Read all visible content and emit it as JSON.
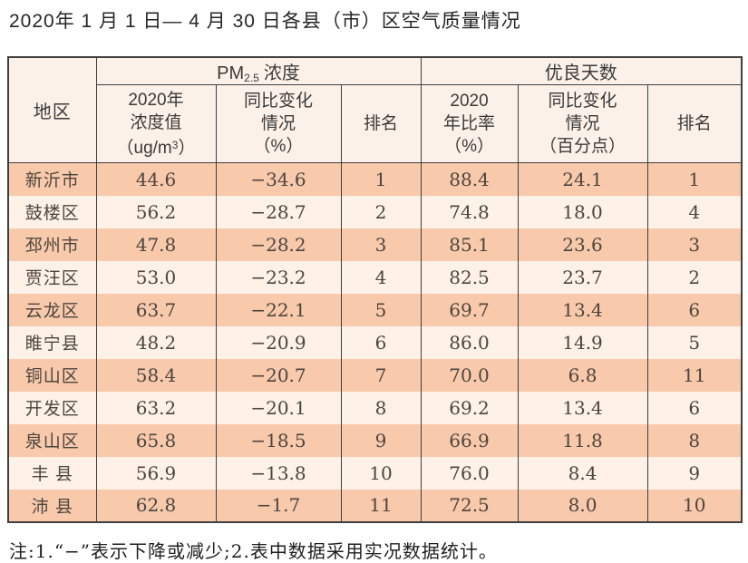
{
  "page": {
    "title": "2020年 1 月 1 日— 4 月 30 日各县（市）区空气质量情况",
    "note": "注:1.“−”表示下降或减少;2.表中数据采用实况数据统计。"
  },
  "table": {
    "header": {
      "region": "地区",
      "group_pm25": {
        "prefix": "PM",
        "sub": "2.5",
        "suffix": "浓度"
      },
      "group_good_days": "优良天数",
      "col_conc": {
        "line1": "2020年",
        "line2": "浓度值",
        "line3_pre": "（ug/m",
        "line3_sup": "3",
        "line3_post": "）"
      },
      "col_conc_change": {
        "line1": "同比变化",
        "line2": "情况",
        "line3": "（%）"
      },
      "col_rank_pm": "排名",
      "col_ratio": {
        "line1": "2020",
        "line2": "年比率",
        "line3": "（%）"
      },
      "col_ratio_change": {
        "line1": "同比变化",
        "line2": "情况",
        "line3": "（百分点）"
      },
      "col_rank_days": "排名"
    },
    "rows": [
      {
        "region": "新沂市",
        "conc": "44.6",
        "conc_change": "−34.6",
        "rank_pm": "1",
        "ratio": "88.4",
        "ratio_change": "24.1",
        "rank_days": "1"
      },
      {
        "region": "鼓楼区",
        "conc": "56.2",
        "conc_change": "−28.7",
        "rank_pm": "2",
        "ratio": "74.8",
        "ratio_change": "18.0",
        "rank_days": "4"
      },
      {
        "region": "邳州市",
        "conc": "47.8",
        "conc_change": "−28.2",
        "rank_pm": "3",
        "ratio": "85.1",
        "ratio_change": "23.6",
        "rank_days": "3"
      },
      {
        "region": "贾汪区",
        "conc": "53.0",
        "conc_change": "−23.2",
        "rank_pm": "4",
        "ratio": "82.5",
        "ratio_change": "23.7",
        "rank_days": "2"
      },
      {
        "region": "云龙区",
        "conc": "63.7",
        "conc_change": "−22.1",
        "rank_pm": "5",
        "ratio": "69.7",
        "ratio_change": "13.4",
        "rank_days": "6"
      },
      {
        "region": "睢宁县",
        "conc": "48.2",
        "conc_change": "−20.9",
        "rank_pm": "6",
        "ratio": "86.0",
        "ratio_change": "14.9",
        "rank_days": "5"
      },
      {
        "region": "铜山区",
        "conc": "58.4",
        "conc_change": "−20.7",
        "rank_pm": "7",
        "ratio": "70.0",
        "ratio_change": "6.8",
        "rank_days": "11"
      },
      {
        "region": "开发区",
        "conc": "63.2",
        "conc_change": "−20.1",
        "rank_pm": "8",
        "ratio": "69.2",
        "ratio_change": "13.4",
        "rank_days": "6"
      },
      {
        "region": "泉山区",
        "conc": "65.8",
        "conc_change": "−18.5",
        "rank_pm": "9",
        "ratio": "66.9",
        "ratio_change": "11.8",
        "rank_days": "8"
      },
      {
        "region": "丰 县",
        "conc": "56.9",
        "conc_change": "−13.8",
        "rank_pm": "10",
        "ratio": "76.0",
        "ratio_change": "8.4",
        "rank_days": "9"
      },
      {
        "region": "沛 县",
        "conc": "62.8",
        "conc_change": "−1.7",
        "rank_pm": "11",
        "ratio": "72.5",
        "ratio_change": "8.0",
        "rank_days": "10"
      }
    ]
  },
  "colors": {
    "row_odd_bg": "#f8c9ab",
    "row_even_bg": "#fdf1e8",
    "header_bg": "#fcf1e8",
    "border": "#3f3f3f"
  }
}
